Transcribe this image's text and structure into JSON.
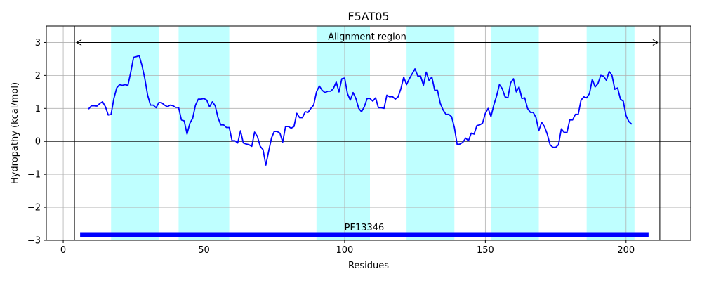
{
  "chart_data": {
    "type": "line",
    "title": "F5AT05",
    "xlabel": "Residues",
    "ylabel": "Hydropathy (kcal/mol)",
    "xlim": [
      -6,
      223
    ],
    "ylim": [
      -3,
      3.5
    ],
    "xticks": [
      0,
      50,
      100,
      150,
      200
    ],
    "yticks": [
      -3,
      -2,
      -1,
      0,
      1,
      2,
      3
    ],
    "xtick_labels": [
      "0",
      "50",
      "100",
      "150",
      "200"
    ],
    "ytick_labels": [
      "−3",
      "−2",
      "−1",
      "0",
      "1",
      "2",
      "3"
    ],
    "grid": true,
    "colors": {
      "line": "#0000ff",
      "band": "#bfffff",
      "domain_bar": "#0000ff",
      "zero_line": "#000000"
    },
    "hydrophobic_regions": [
      [
        17,
        34
      ],
      [
        41,
        59
      ],
      [
        90,
        109
      ],
      [
        122,
        139
      ],
      [
        152,
        169
      ],
      [
        186,
        203
      ]
    ],
    "alignment_region": {
      "label": "Alignment region",
      "start": 4,
      "end": 212
    },
    "domain": {
      "label": "PF13346",
      "start": 6,
      "end": 208,
      "y": -2.83
    },
    "series": [
      {
        "x": [
          9,
          10,
          11,
          12,
          13,
          14,
          15,
          16,
          17,
          18,
          19,
          20,
          21,
          22,
          23,
          24,
          25,
          26,
          27,
          28,
          29,
          30,
          31,
          32,
          33,
          34,
          35,
          36,
          37,
          38,
          39,
          40,
          41,
          42,
          43,
          44,
          45,
          46,
          47,
          48,
          49,
          50,
          51,
          52,
          53,
          54,
          55,
          56,
          57,
          58,
          59,
          60,
          61,
          62,
          63,
          64,
          65,
          66,
          67,
          68,
          69,
          70,
          71,
          72,
          73,
          74,
          75,
          76,
          77,
          78,
          79,
          80,
          81,
          82,
          83,
          84,
          85,
          86,
          87,
          88,
          89,
          90,
          91,
          92,
          93,
          94,
          95,
          96,
          97,
          98,
          99,
          100,
          101,
          102,
          103,
          104,
          105,
          106,
          107,
          108,
          109,
          110,
          111,
          112,
          113,
          114,
          115,
          116,
          117,
          118,
          119,
          120,
          121,
          122,
          123,
          124,
          125,
          126,
          127,
          128,
          129,
          130,
          131,
          132,
          133,
          134,
          135,
          136,
          137,
          138,
          139,
          140,
          141,
          142,
          143,
          144,
          145,
          146,
          147,
          148,
          149,
          150,
          151,
          152,
          153,
          154,
          155,
          156,
          157,
          158,
          159,
          160,
          161,
          162,
          163,
          164,
          165,
          166,
          167,
          168,
          169,
          170,
          171,
          172,
          173,
          174,
          175,
          176,
          177,
          178,
          179,
          180,
          181,
          182,
          183,
          184,
          185,
          186,
          187,
          188,
          189,
          190,
          191,
          192,
          193,
          194,
          195,
          196,
          197,
          198,
          199,
          200,
          201,
          202
        ],
        "y": [
          0.98,
          1.08,
          1.08,
          1.07,
          1.15,
          1.2,
          1.05,
          0.8,
          0.82,
          1.3,
          1.62,
          1.72,
          1.7,
          1.72,
          1.7,
          2.1,
          2.55,
          2.57,
          2.6,
          2.3,
          1.9,
          1.4,
          1.1,
          1.1,
          1.02,
          1.18,
          1.17,
          1.1,
          1.05,
          1.1,
          1.08,
          1.03,
          1.03,
          0.65,
          0.62,
          0.22,
          0.55,
          0.7,
          1.1,
          1.28,
          1.28,
          1.3,
          1.25,
          1.05,
          1.2,
          1.08,
          0.72,
          0.5,
          0.5,
          0.42,
          0.42,
          0.02,
          0.02,
          -0.05,
          0.32,
          -0.05,
          -0.08,
          -0.1,
          -0.15,
          0.28,
          0.15,
          -0.15,
          -0.25,
          -0.72,
          -0.3,
          0.1,
          0.3,
          0.3,
          0.25,
          -0.02,
          0.45,
          0.45,
          0.4,
          0.45,
          0.85,
          0.72,
          0.72,
          0.9,
          0.88,
          1.0,
          1.1,
          1.5,
          1.68,
          1.55,
          1.48,
          1.52,
          1.52,
          1.6,
          1.8,
          1.5,
          1.9,
          1.92,
          1.45,
          1.25,
          1.48,
          1.3,
          1.0,
          0.9,
          1.05,
          1.3,
          1.3,
          1.22,
          1.32,
          1.02,
          1.02,
          1.0,
          1.4,
          1.35,
          1.36,
          1.28,
          1.35,
          1.6,
          1.95,
          1.72,
          1.9,
          2.05,
          2.2,
          1.98,
          1.98,
          1.7,
          2.1,
          1.85,
          1.95,
          1.55,
          1.55,
          1.15,
          0.95,
          0.82,
          0.82,
          0.75,
          0.42,
          -0.1,
          -0.08,
          -0.03,
          0.1,
          0.02,
          0.25,
          0.22,
          0.48,
          0.5,
          0.55,
          0.85,
          1.0,
          0.75,
          1.1,
          1.38,
          1.72,
          1.6,
          1.35,
          1.32,
          1.78,
          1.9,
          1.5,
          1.65,
          1.3,
          1.32,
          1.0,
          0.88,
          0.88,
          0.72,
          0.32,
          0.58,
          0.45,
          0.22,
          -0.1,
          -0.18,
          -0.18,
          -0.1,
          0.38,
          0.27,
          0.27,
          0.65,
          0.65,
          0.82,
          0.82,
          1.25,
          1.35,
          1.32,
          1.45,
          1.88,
          1.65,
          1.75,
          2.0,
          1.98,
          1.85,
          2.12,
          2.0,
          1.58,
          1.62,
          1.28,
          1.22,
          0.78,
          0.6,
          0.52
        ]
      }
    ]
  }
}
